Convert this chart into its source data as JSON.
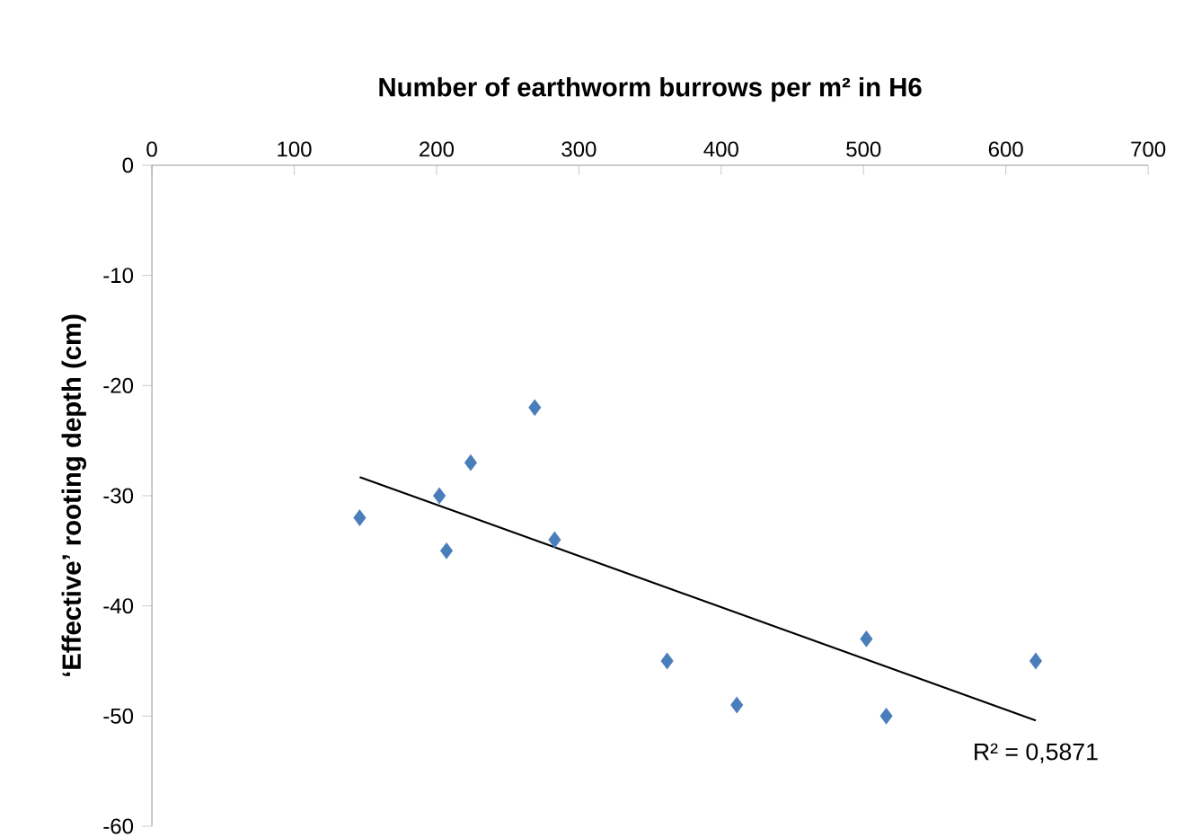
{
  "chart_data": {
    "type": "scatter",
    "title": "Number of earthworm burrows per m² in H6",
    "ylabel": "‘Effective’ rooting depth (cm)",
    "xlim": [
      0,
      700
    ],
    "xticks": [
      0,
      100,
      200,
      300,
      400,
      500,
      600,
      700
    ],
    "ylim": [
      -60,
      0
    ],
    "yticks": [
      -60,
      -50,
      -40,
      -30,
      -20,
      -10,
      0
    ],
    "grid": false,
    "series": [
      {
        "marker": "diamond",
        "color": "#4a7ebb",
        "x": [
          146,
          202,
          207,
          224,
          269,
          283,
          362,
          411,
          502,
          516,
          621
        ],
        "values": [
          -32,
          -30,
          -35,
          -27,
          -22,
          -34,
          -45,
          -49,
          -43,
          -50,
          -45
        ]
      },
      {
        "type": "line",
        "marker": "none",
        "color": "#000000",
        "x": [
          146,
          621
        ],
        "values": [
          -28.3,
          -50.4
        ]
      }
    ],
    "annotations": [
      {
        "text": "R² = 0,5871",
        "x": 621,
        "y": -50.4
      }
    ]
  }
}
